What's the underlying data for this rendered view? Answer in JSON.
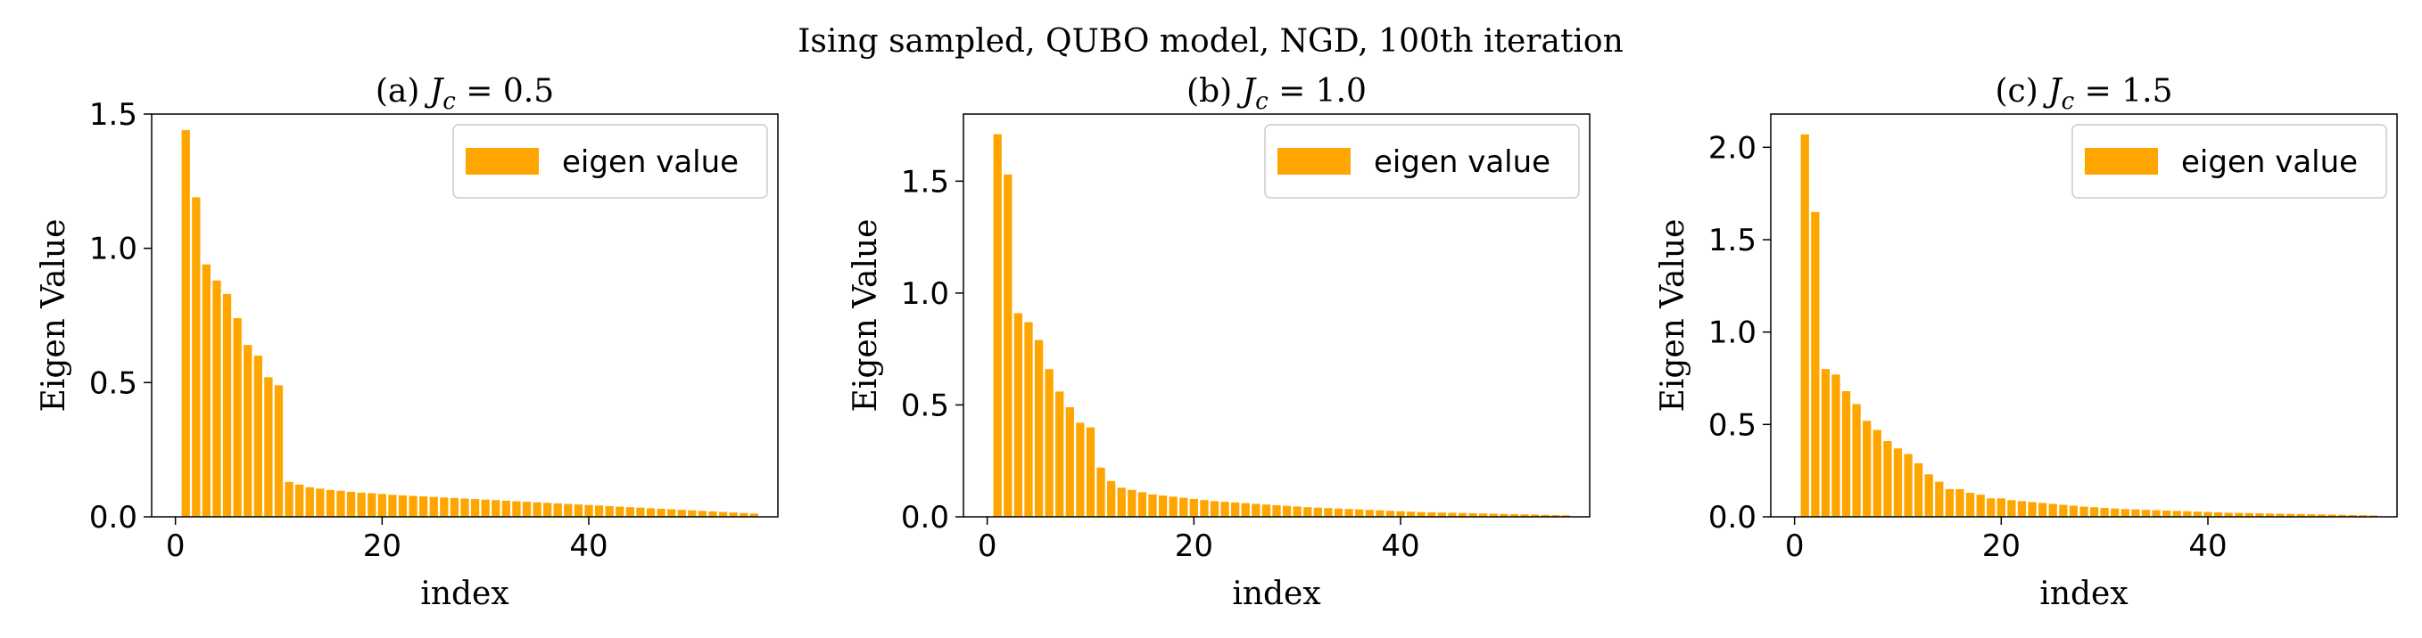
{
  "figure": {
    "suptitle": "Ising sampled, QUBO model, NGD, 100th iteration",
    "bar_color": "#FFA500"
  },
  "chart_data": [
    {
      "type": "bar",
      "title_prefix": "(a) ",
      "title_var": "J",
      "title_sub": "c",
      "title_rest": " = 0.5",
      "xlabel": "index",
      "ylabel": "Eigen Value",
      "legend": "eigen value",
      "legend_position": "top-right",
      "xlim": [
        -2.3,
        58.3
      ],
      "ylim": [
        0,
        1.5
      ],
      "xticks": [
        0,
        20,
        40
      ],
      "yticks": [
        "0.0",
        "0.5",
        "1.0",
        "1.5"
      ],
      "grid": false,
      "categories": [
        1,
        2,
        3,
        4,
        5,
        6,
        7,
        8,
        9,
        10,
        11,
        12,
        13,
        14,
        15,
        16,
        17,
        18,
        19,
        20,
        21,
        22,
        23,
        24,
        25,
        26,
        27,
        28,
        29,
        30,
        31,
        32,
        33,
        34,
        35,
        36,
        37,
        38,
        39,
        40,
        41,
        42,
        43,
        44,
        45,
        46,
        47,
        48,
        49,
        50,
        51,
        52,
        53,
        54,
        55,
        56
      ],
      "values": [
        1.44,
        1.19,
        0.94,
        0.88,
        0.83,
        0.74,
        0.64,
        0.6,
        0.52,
        0.49,
        0.13,
        0.12,
        0.11,
        0.105,
        0.1,
        0.097,
        0.093,
        0.09,
        0.088,
        0.085,
        0.082,
        0.08,
        0.078,
        0.076,
        0.074,
        0.072,
        0.07,
        0.068,
        0.066,
        0.064,
        0.062,
        0.06,
        0.058,
        0.056,
        0.054,
        0.052,
        0.05,
        0.048,
        0.046,
        0.044,
        0.042,
        0.04,
        0.038,
        0.036,
        0.034,
        0.032,
        0.03,
        0.028,
        0.026,
        0.024,
        0.022,
        0.02,
        0.018,
        0.016,
        0.014,
        0.012
      ]
    },
    {
      "type": "bar",
      "title_prefix": "(b) ",
      "title_var": "J",
      "title_sub": "c",
      "title_rest": " = 1.0",
      "xlabel": "index",
      "ylabel": "Eigen Value",
      "legend": "eigen value",
      "legend_position": "top-right",
      "xlim": [
        -2.3,
        58.3
      ],
      "ylim": [
        0,
        1.8
      ],
      "xticks": [
        0,
        20,
        40
      ],
      "yticks": [
        "0.0",
        "0.5",
        "1.0",
        "1.5"
      ],
      "grid": false,
      "categories": [
        1,
        2,
        3,
        4,
        5,
        6,
        7,
        8,
        9,
        10,
        11,
        12,
        13,
        14,
        15,
        16,
        17,
        18,
        19,
        20,
        21,
        22,
        23,
        24,
        25,
        26,
        27,
        28,
        29,
        30,
        31,
        32,
        33,
        34,
        35,
        36,
        37,
        38,
        39,
        40,
        41,
        42,
        43,
        44,
        45,
        46,
        47,
        48,
        49,
        50,
        51,
        52,
        53,
        54,
        55,
        56
      ],
      "values": [
        1.71,
        1.53,
        0.91,
        0.87,
        0.79,
        0.66,
        0.56,
        0.49,
        0.42,
        0.4,
        0.22,
        0.16,
        0.13,
        0.12,
        0.11,
        0.1,
        0.095,
        0.09,
        0.085,
        0.08,
        0.075,
        0.07,
        0.067,
        0.064,
        0.061,
        0.058,
        0.055,
        0.052,
        0.049,
        0.046,
        0.043,
        0.041,
        0.039,
        0.037,
        0.035,
        0.033,
        0.031,
        0.029,
        0.027,
        0.025,
        0.023,
        0.021,
        0.02,
        0.019,
        0.018,
        0.017,
        0.016,
        0.015,
        0.014,
        0.013,
        0.012,
        0.011,
        0.01,
        0.009,
        0.008,
        0.007
      ]
    },
    {
      "type": "bar",
      "title_prefix": "(c) ",
      "title_var": "J",
      "title_sub": "c",
      "title_rest": " = 1.5",
      "xlabel": "index",
      "ylabel": "Eigen Value",
      "legend": "eigen value",
      "legend_position": "top-right",
      "xlim": [
        -2.3,
        58.3
      ],
      "ylim": [
        0,
        2.18
      ],
      "xticks": [
        0,
        20,
        40
      ],
      "yticks": [
        "0.0",
        "0.5",
        "1.0",
        "1.5",
        "2.0"
      ],
      "grid": false,
      "categories": [
        1,
        2,
        3,
        4,
        5,
        6,
        7,
        8,
        9,
        10,
        11,
        12,
        13,
        14,
        15,
        16,
        17,
        18,
        19,
        20,
        21,
        22,
        23,
        24,
        25,
        26,
        27,
        28,
        29,
        30,
        31,
        32,
        33,
        34,
        35,
        36,
        37,
        38,
        39,
        40,
        41,
        42,
        43,
        44,
        45,
        46,
        47,
        48,
        49,
        50,
        51,
        52,
        53,
        54,
        55,
        56
      ],
      "values": [
        2.07,
        1.65,
        0.8,
        0.77,
        0.68,
        0.61,
        0.52,
        0.47,
        0.41,
        0.37,
        0.34,
        0.29,
        0.23,
        0.19,
        0.15,
        0.15,
        0.13,
        0.12,
        0.1,
        0.1,
        0.09,
        0.085,
        0.08,
        0.075,
        0.07,
        0.065,
        0.06,
        0.055,
        0.052,
        0.048,
        0.045,
        0.042,
        0.04,
        0.038,
        0.036,
        0.034,
        0.032,
        0.03,
        0.028,
        0.026,
        0.024,
        0.022,
        0.021,
        0.02,
        0.019,
        0.018,
        0.017,
        0.016,
        0.015,
        0.014,
        0.013,
        0.012,
        0.011,
        0.01,
        0.009,
        0.008
      ]
    }
  ]
}
